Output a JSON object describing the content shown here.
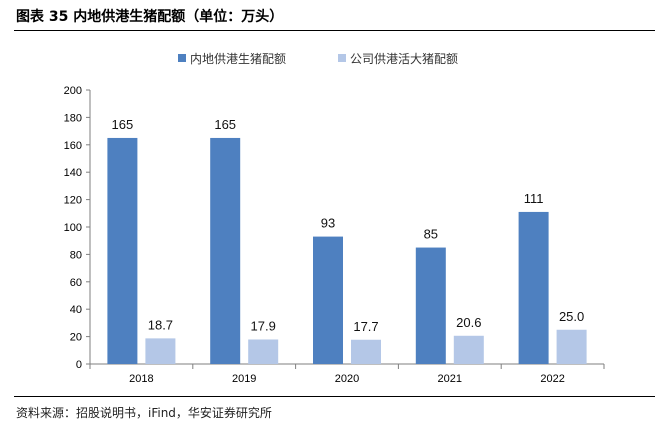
{
  "title": "图表 35  内地供港生猪配额（单位：万头）",
  "source": "资料来源：招股说明书，iFind，华安证券研究所",
  "colors": {
    "series1": "#4e80c0",
    "series2": "#b4c7e7",
    "axis": "#7f7f7f"
  },
  "chart_data": {
    "type": "bar",
    "title": "",
    "xlabel": "",
    "ylabel": "",
    "categories": [
      "2018",
      "2019",
      "2020",
      "2021",
      "2022"
    ],
    "series": [
      {
        "name": "内地供港生猪配额",
        "values": [
          165,
          165,
          93,
          85,
          111
        ],
        "labels": [
          "165",
          "165",
          "93",
          "85",
          "111"
        ]
      },
      {
        "name": "公司供港活大猪配额",
        "values": [
          18.7,
          17.9,
          17.7,
          20.6,
          25.0
        ],
        "labels": [
          "18.7",
          "17.9",
          "17.7",
          "20.6",
          "25.0"
        ]
      }
    ],
    "ylim": [
      0,
      200
    ],
    "yticks": [
      0,
      20,
      40,
      60,
      80,
      100,
      120,
      140,
      160,
      180,
      200
    ],
    "grid": false,
    "legend": "top-center"
  }
}
